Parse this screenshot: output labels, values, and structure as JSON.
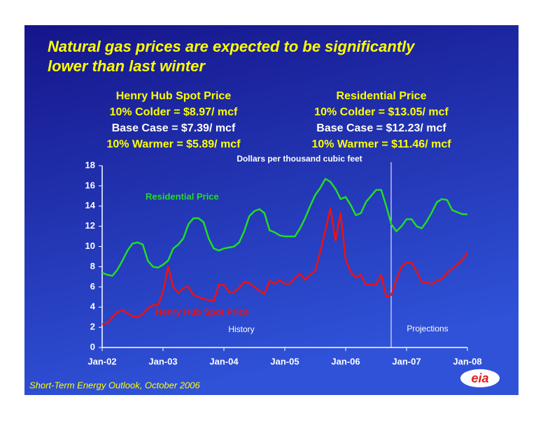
{
  "chart_data": {
    "type": "line",
    "title": [
      "Natural gas prices are expected to be significantly",
      "lower than last winter"
    ],
    "scenarios": [
      {
        "heading": "Henry Hub Spot Price",
        "lines": [
          "10%  Colder = $8.97/ mcf",
          "Base Case = $7.39/ mcf",
          "10%  Warmer = $5.89/ mcf"
        ]
      },
      {
        "heading": "Residential Price",
        "lines": [
          "10%  Colder = $13.05/ mcf",
          "Base Case = $12.23/ mcf",
          "10%  Warmer = $11.46/ mcf"
        ]
      }
    ],
    "y_label": "Dollars per thousand cubic feet",
    "annotations": [
      "History",
      "Projections"
    ],
    "source": "Short-Term Energy Outlook, October 2006",
    "logo": "eia",
    "x": [
      "2002-01",
      "2002-02",
      "2002-03",
      "2002-04",
      "2002-05",
      "2002-06",
      "2002-07",
      "2002-08",
      "2002-09",
      "2002-10",
      "2002-11",
      "2002-12",
      "2003-01",
      "2003-02",
      "2003-03",
      "2003-04",
      "2003-05",
      "2003-06",
      "2003-07",
      "2003-08",
      "2003-09",
      "2003-10",
      "2003-11",
      "2003-12",
      "2004-01",
      "2004-02",
      "2004-03",
      "2004-04",
      "2004-05",
      "2004-06",
      "2004-07",
      "2004-08",
      "2004-09",
      "2004-10",
      "2004-11",
      "2004-12",
      "2005-01",
      "2005-02",
      "2005-03",
      "2005-04",
      "2005-05",
      "2005-06",
      "2005-07",
      "2005-08",
      "2005-09",
      "2005-10",
      "2005-11",
      "2005-12",
      "2006-01",
      "2006-02",
      "2006-03",
      "2006-04",
      "2006-05",
      "2006-06",
      "2006-07",
      "2006-08",
      "2006-09",
      "2006-10",
      "2006-11",
      "2006-12",
      "2007-01",
      "2007-02",
      "2007-03",
      "2007-04",
      "2007-05",
      "2007-06",
      "2007-07",
      "2007-08",
      "2007-09",
      "2007-10",
      "2007-11",
      "2007-12",
      "2008-01"
    ],
    "series": [
      {
        "name": "Residential Price",
        "color": "#22dd22",
        "values": [
          7.4,
          7.2,
          7.1,
          7.7,
          8.6,
          9.6,
          10.3,
          10.4,
          10.2,
          8.6,
          8.0,
          7.9,
          8.2,
          8.6,
          9.8,
          10.2,
          10.8,
          12.2,
          12.8,
          12.8,
          12.4,
          10.8,
          9.8,
          9.6,
          9.8,
          9.9,
          10.0,
          10.4,
          11.5,
          13.0,
          13.5,
          13.7,
          13.3,
          11.6,
          11.4,
          11.1,
          11.0,
          11.0,
          11.0,
          11.8,
          12.8,
          14.0,
          15.1,
          15.8,
          16.7,
          16.4,
          15.7,
          14.7,
          14.9,
          14.1,
          13.1,
          13.3,
          14.4,
          15.0,
          15.6,
          15.6,
          14.0,
          12.2,
          11.5,
          12.0,
          12.7,
          12.7,
          12.0,
          11.8,
          12.5,
          13.4,
          14.4,
          14.7,
          14.6,
          13.6,
          13.4,
          13.2,
          13.2
        ]
      },
      {
        "name": "Henry Hub Spot Price",
        "color": "#ee1111",
        "values": [
          2.3,
          2.4,
          3.0,
          3.5,
          3.7,
          3.4,
          3.1,
          3.0,
          3.3,
          3.9,
          4.2,
          4.2,
          5.5,
          8.0,
          6.0,
          5.4,
          5.9,
          6.0,
          5.2,
          5.0,
          4.8,
          4.7,
          4.6,
          6.2,
          6.2,
          5.5,
          5.5,
          5.9,
          6.5,
          6.4,
          6.0,
          5.6,
          5.3,
          6.6,
          6.3,
          6.7,
          6.3,
          6.3,
          6.9,
          7.3,
          6.7,
          7.2,
          7.6,
          9.5,
          11.6,
          13.8,
          10.6,
          13.3,
          8.7,
          7.5,
          6.9,
          7.2,
          6.2,
          6.2,
          6.2,
          7.2,
          5.0,
          5.2,
          6.7,
          8.0,
          8.4,
          8.4,
          7.5,
          6.5,
          6.4,
          6.3,
          6.6,
          6.8,
          7.4,
          7.8,
          8.2,
          8.7,
          9.4
        ]
      }
    ],
    "xlim": [
      "2002-01",
      "2008-01"
    ],
    "xticks": [
      {
        "value": "2002-01",
        "label": "Jan-02"
      },
      {
        "value": "2003-01",
        "label": "Jan-03"
      },
      {
        "value": "2004-01",
        "label": "Jan-04"
      },
      {
        "value": "2005-01",
        "label": "Jan-05"
      },
      {
        "value": "2006-01",
        "label": "Jan-06"
      },
      {
        "value": "2007-01",
        "label": "Jan-07"
      },
      {
        "value": "2008-01",
        "label": "Jan-08"
      }
    ],
    "ylim": [
      0,
      18
    ],
    "yticks": [
      0,
      2,
      4,
      6,
      8,
      10,
      12,
      14,
      16,
      18
    ],
    "grid": false
  }
}
